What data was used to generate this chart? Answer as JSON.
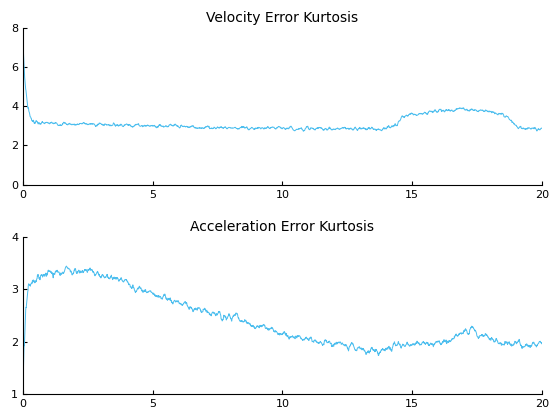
{
  "title1": "Velocity Error Kurtosis",
  "title2": "Acceleration Error Kurtosis",
  "xlim": [
    0,
    20
  ],
  "ylim1": [
    0,
    8
  ],
  "ylim2": [
    1,
    4
  ],
  "yticks1": [
    0,
    2,
    4,
    6,
    8
  ],
  "yticks2": [
    1,
    2,
    3,
    4
  ],
  "xticks": [
    0,
    5,
    10,
    15,
    20
  ],
  "line_color": "#4DBEEE",
  "line_width": 0.7,
  "n_points": 2000,
  "figsize": [
    5.6,
    4.2
  ],
  "dpi": 100
}
